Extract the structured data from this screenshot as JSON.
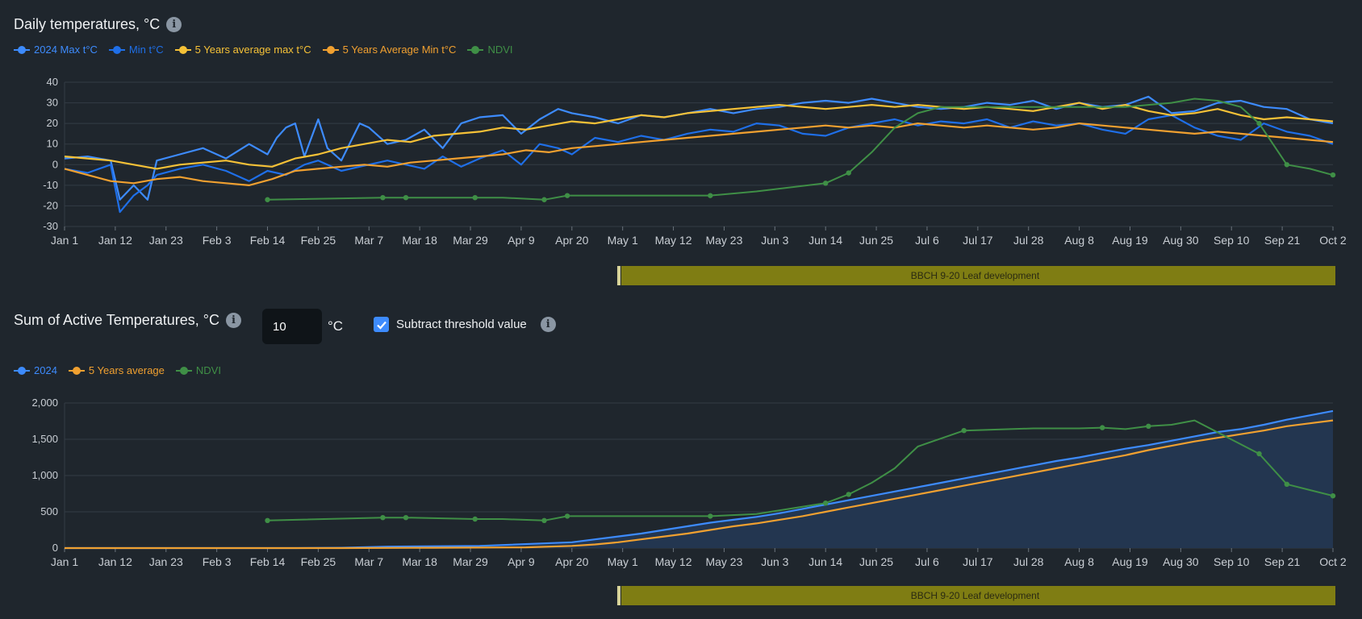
{
  "section1": {
    "title": "Daily temperatures, °C",
    "info_icon": "info-icon"
  },
  "section2": {
    "title": "Sum of Active Temperatures, °C",
    "info_icon": "info-icon",
    "threshold_value": "10",
    "threshold_unit": "°C",
    "subtract_label": "Subtract threshold value",
    "subtract_checked": true
  },
  "legend1": [
    {
      "label": "2024 Max t°C",
      "color": "#3d8bfd"
    },
    {
      "label": "Min t°C",
      "color": "#1f6fe8"
    },
    {
      "label": "5 Years average max t°C",
      "color": "#f5c137"
    },
    {
      "label": "5 Years Average Min t°C",
      "color": "#f0a030"
    },
    {
      "label": "NDVI",
      "color": "#3f8f46"
    }
  ],
  "legend2": [
    {
      "label": "2024",
      "color": "#3d8bfd"
    },
    {
      "label": "5 Years average",
      "color": "#f0a030"
    },
    {
      "label": "NDVI",
      "color": "#3f8f46"
    }
  ],
  "colors": {
    "background": "#1f262d",
    "grid": "#333c45",
    "axis_text": "#c9ced4",
    "phase_band": "#7f7d13"
  },
  "phase_label": "BBCH 9-20 Leaf development",
  "chart_data": [
    {
      "type": "line",
      "title": "Daily temperatures, °C",
      "x_ticks": [
        "Jan 1",
        "Jan 12",
        "Jan 23",
        "Feb 3",
        "Feb 14",
        "Feb 25",
        "Mar 7",
        "Mar 18",
        "Mar 29",
        "Apr 9",
        "Apr 20",
        "May 1",
        "May 12",
        "May 23",
        "Jun 3",
        "Jun 14",
        "Jun 25",
        "Jul 6",
        "Jul 17",
        "Jul 28",
        "Aug 8",
        "Aug 19",
        "Aug 30",
        "Sep 10",
        "Sep 21",
        "Oct 2"
      ],
      "y_ticks": [
        40,
        30,
        20,
        10,
        0,
        -10,
        -20,
        -30
      ],
      "ylim": [
        -30,
        40
      ],
      "x_days": [
        0,
        275
      ],
      "series": [
        {
          "name": "2024 Max t°C",
          "days": [
            0,
            5,
            10,
            12,
            15,
            18,
            20,
            25,
            30,
            35,
            40,
            44,
            46,
            48,
            50,
            52,
            55,
            57,
            60,
            64,
            66,
            70,
            74,
            78,
            82,
            86,
            90,
            95,
            99,
            103,
            107,
            110,
            115,
            120,
            125,
            130,
            135,
            140,
            145,
            150,
            155,
            160,
            165,
            170,
            175,
            180,
            185,
            190,
            195,
            200,
            205,
            210,
            215,
            220,
            225,
            230,
            235,
            240,
            245,
            250,
            255,
            260,
            265,
            270,
            275
          ],
          "values": [
            3,
            4,
            2,
            -17,
            -10,
            -17,
            2,
            5,
            8,
            3,
            10,
            5,
            13,
            18,
            20,
            4,
            22,
            8,
            2,
            20,
            18,
            10,
            12,
            17,
            8,
            20,
            23,
            24,
            15,
            22,
            27,
            25,
            23,
            20,
            24,
            23,
            25,
            27,
            25,
            27,
            28,
            30,
            31,
            30,
            32,
            30,
            28,
            27,
            28,
            30,
            29,
            31,
            27,
            30,
            28,
            29,
            33,
            25,
            26,
            30,
            31,
            28,
            27,
            22,
            20
          ]
        },
        {
          "name": "Min t°C",
          "days": [
            0,
            5,
            10,
            12,
            15,
            18,
            20,
            25,
            30,
            35,
            40,
            44,
            48,
            52,
            55,
            60,
            64,
            70,
            74,
            78,
            82,
            86,
            90,
            95,
            99,
            103,
            107,
            110,
            115,
            120,
            125,
            130,
            135,
            140,
            145,
            150,
            155,
            160,
            165,
            170,
            175,
            180,
            185,
            190,
            195,
            200,
            205,
            210,
            215,
            220,
            225,
            230,
            235,
            240,
            245,
            250,
            255,
            260,
            265,
            270,
            275
          ],
          "values": [
            -2,
            -4,
            0,
            -23,
            -15,
            -10,
            -5,
            -2,
            0,
            -3,
            -8,
            -3,
            -5,
            0,
            2,
            -3,
            -1,
            2,
            0,
            -2,
            4,
            -1,
            3,
            7,
            0,
            10,
            8,
            5,
            13,
            11,
            14,
            12,
            15,
            17,
            16,
            20,
            19,
            15,
            14,
            18,
            20,
            22,
            19,
            21,
            20,
            22,
            18,
            21,
            19,
            20,
            17,
            15,
            22,
            24,
            18,
            14,
            12,
            20,
            16,
            14,
            10
          ]
        },
        {
          "name": "5 Years average max t°C",
          "days": [
            0,
            5,
            10,
            15,
            20,
            25,
            30,
            35,
            40,
            45,
            50,
            55,
            60,
            65,
            70,
            75,
            80,
            85,
            90,
            95,
            100,
            105,
            110,
            115,
            120,
            125,
            130,
            135,
            140,
            145,
            150,
            155,
            160,
            165,
            170,
            175,
            180,
            185,
            190,
            195,
            200,
            205,
            210,
            215,
            220,
            225,
            230,
            235,
            240,
            245,
            250,
            255,
            260,
            265,
            270,
            275
          ],
          "values": [
            4,
            3,
            2,
            0,
            -2,
            0,
            1,
            2,
            0,
            -1,
            3,
            5,
            8,
            10,
            12,
            11,
            14,
            15,
            16,
            18,
            17,
            19,
            21,
            20,
            22,
            24,
            23,
            25,
            26,
            27,
            28,
            29,
            28,
            27,
            28,
            29,
            28,
            29,
            28,
            27,
            28,
            27,
            26,
            28,
            30,
            27,
            29,
            26,
            24,
            25,
            27,
            24,
            22,
            23,
            22,
            21
          ]
        },
        {
          "name": "5 Years Average Min t°C",
          "days": [
            0,
            5,
            10,
            15,
            20,
            25,
            30,
            35,
            40,
            45,
            50,
            55,
            60,
            65,
            70,
            75,
            80,
            85,
            90,
            95,
            100,
            105,
            110,
            115,
            120,
            125,
            130,
            135,
            140,
            145,
            150,
            155,
            160,
            165,
            170,
            175,
            180,
            185,
            190,
            195,
            200,
            205,
            210,
            215,
            220,
            225,
            230,
            235,
            240,
            245,
            250,
            255,
            260,
            265,
            270,
            275
          ],
          "values": [
            -2,
            -5,
            -8,
            -9,
            -7,
            -6,
            -8,
            -9,
            -10,
            -7,
            -3,
            -2,
            -1,
            0,
            -1,
            1,
            2,
            3,
            4,
            5,
            7,
            6,
            8,
            9,
            10,
            11,
            12,
            13,
            14,
            15,
            16,
            17,
            18,
            19,
            18,
            19,
            18,
            20,
            19,
            18,
            19,
            18,
            17,
            18,
            20,
            19,
            18,
            17,
            16,
            15,
            16,
            15,
            14,
            13,
            12,
            11
          ]
        },
        {
          "name": "NDVI",
          "days": [
            44,
            69,
            74,
            89,
            95,
            104,
            109,
            140,
            150,
            165,
            170,
            175,
            180,
            185,
            190,
            200,
            210,
            220,
            230,
            235,
            240,
            245,
            250,
            255,
            259,
            265,
            270,
            275
          ],
          "values": [
            -17,
            -16,
            -16,
            -16,
            -16,
            -17,
            -15,
            -15,
            -13,
            -9,
            -4,
            6,
            18,
            25,
            28,
            28,
            28,
            28,
            28,
            29,
            30,
            32,
            31,
            28,
            20,
            0,
            -2,
            -5
          ],
          "markers": [
            44,
            69,
            74,
            89,
            104,
            109,
            140,
            165,
            170,
            259,
            265,
            275
          ]
        }
      ]
    },
    {
      "type": "area",
      "title": "Sum of Active Temperatures, °C",
      "x_ticks": [
        "Jan 1",
        "Jan 12",
        "Jan 23",
        "Feb 3",
        "Feb 14",
        "Feb 25",
        "Mar 7",
        "Mar 18",
        "Mar 29",
        "Apr 9",
        "Apr 20",
        "May 1",
        "May 12",
        "May 23",
        "Jun 3",
        "Jun 14",
        "Jun 25",
        "Jul 6",
        "Jul 17",
        "Jul 28",
        "Aug 8",
        "Aug 19",
        "Aug 30",
        "Sep 10",
        "Sep 21",
        "Oct 2"
      ],
      "y_ticks": [
        "2,000",
        "1,500",
        "1,000",
        "500",
        "0"
      ],
      "ylim": [
        0,
        2000
      ],
      "x_days": [
        0,
        275
      ],
      "series": [
        {
          "name": "2024",
          "days": [
            0,
            50,
            60,
            70,
            90,
            110,
            115,
            120,
            125,
            130,
            135,
            140,
            145,
            150,
            155,
            160,
            165,
            170,
            175,
            180,
            185,
            190,
            195,
            200,
            205,
            210,
            215,
            220,
            225,
            230,
            235,
            240,
            245,
            250,
            255,
            260,
            265,
            270,
            275
          ],
          "values": [
            0,
            0,
            5,
            20,
            30,
            80,
            120,
            160,
            200,
            250,
            300,
            350,
            390,
            430,
            480,
            540,
            600,
            660,
            720,
            780,
            840,
            900,
            960,
            1020,
            1080,
            1140,
            1200,
            1250,
            1310,
            1370,
            1420,
            1480,
            1540,
            1600,
            1640,
            1700,
            1770,
            1830,
            1890
          ]
        },
        {
          "name": "5 Years average",
          "days": [
            0,
            60,
            80,
            100,
            110,
            115,
            120,
            125,
            130,
            135,
            140,
            145,
            150,
            155,
            160,
            165,
            170,
            175,
            180,
            185,
            190,
            195,
            200,
            205,
            210,
            215,
            220,
            225,
            230,
            235,
            240,
            245,
            250,
            255,
            260,
            265,
            270,
            275
          ],
          "values": [
            0,
            0,
            5,
            10,
            30,
            50,
            80,
            120,
            160,
            200,
            250,
            300,
            340,
            390,
            440,
            500,
            560,
            620,
            680,
            740,
            800,
            860,
            920,
            980,
            1040,
            1100,
            1160,
            1220,
            1280,
            1350,
            1410,
            1470,
            1520,
            1570,
            1620,
            1680,
            1720,
            1760
          ]
        },
        {
          "name": "NDVI",
          "days": [
            44,
            69,
            74,
            89,
            95,
            104,
            109,
            140,
            150,
            165,
            170,
            175,
            180,
            185,
            195,
            210,
            215,
            220,
            225,
            230,
            235,
            240,
            245,
            259,
            265,
            270,
            275
          ],
          "values": [
            380,
            420,
            420,
            400,
            400,
            380,
            440,
            440,
            470,
            620,
            740,
            900,
            1100,
            1400,
            1620,
            1650,
            1650,
            1650,
            1660,
            1640,
            1680,
            1700,
            1760,
            1300,
            880,
            800,
            720
          ],
          "markers": [
            44,
            69,
            74,
            89,
            104,
            109,
            140,
            165,
            170,
            195,
            225,
            235,
            259,
            265,
            275
          ]
        }
      ]
    }
  ]
}
